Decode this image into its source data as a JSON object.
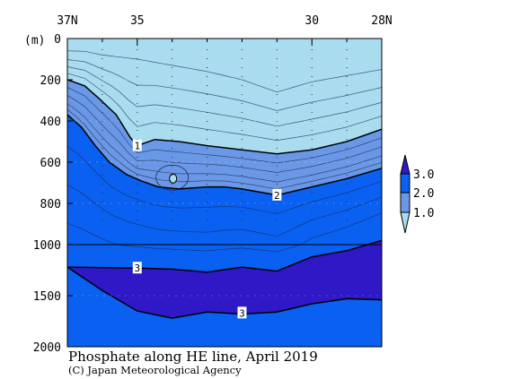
{
  "title": "Phosphate along HE line, April 2019",
  "credit": "(C) Japan Meteorological Agency",
  "depth_unit": "(m)",
  "chart_data": {
    "type": "contour",
    "x_axis": {
      "range": [
        37,
        28
      ],
      "ticks": [
        {
          "lat": 37,
          "label": "37N"
        },
        {
          "lat": 35,
          "label": "35"
        },
        {
          "lat": 30,
          "label": "30"
        },
        {
          "lat": 28,
          "label": "28N"
        }
      ],
      "minor_ticks": [
        36,
        34,
        33,
        32,
        31,
        29
      ]
    },
    "y_axis": {
      "range": [
        0,
        2000
      ],
      "break_at": 1000,
      "ticks": [
        {
          "depth": 0,
          "label": "0"
        },
        {
          "depth": 200,
          "label": "200"
        },
        {
          "depth": 400,
          "label": "400"
        },
        {
          "depth": 600,
          "label": "600"
        },
        {
          "depth": 800,
          "label": "800"
        },
        {
          "depth": 1000,
          "label": "1000"
        },
        {
          "depth": 1500,
          "label": "1500"
        },
        {
          "depth": 2000,
          "label": "2000"
        }
      ]
    },
    "stations": [
      36,
      35,
      34,
      33,
      32,
      31,
      30,
      29
    ],
    "colors": {
      "below_1": "#a9dcee",
      "1_to_2": "#6a98e6",
      "2_to_3": "#0a60f0",
      "above_3": "#2f18c6"
    },
    "legend": {
      "placement": "right",
      "levels": [
        {
          "value": 1.0,
          "label": "1.0"
        },
        {
          "value": 2.0,
          "label": "2.0"
        },
        {
          "value": 3.0,
          "label": "3.0"
        }
      ]
    },
    "contours": [
      {
        "level": 1.0,
        "label": "1",
        "label_lat": 35.0,
        "label_depth": 520,
        "points": [
          [
            37,
            200
          ],
          [
            36.5,
            230
          ],
          [
            36.1,
            290
          ],
          [
            35.6,
            370
          ],
          [
            35.2,
            480
          ],
          [
            35.0,
            520
          ],
          [
            34.5,
            490
          ],
          [
            33.8,
            500
          ],
          [
            33.0,
            520
          ],
          [
            32.0,
            540
          ],
          [
            31.0,
            560
          ],
          [
            30.0,
            540
          ],
          [
            29.0,
            500
          ],
          [
            28.0,
            440
          ]
        ]
      },
      {
        "level": 2.0,
        "label": "2",
        "label_lat": 31.0,
        "label_depth": 760,
        "points": [
          [
            37,
            370
          ],
          [
            36.6,
            430
          ],
          [
            36.2,
            520
          ],
          [
            35.8,
            600
          ],
          [
            35.3,
            660
          ],
          [
            34.9,
            690
          ],
          [
            34.4,
            720
          ],
          [
            33.8,
            730
          ],
          [
            33.0,
            720
          ],
          [
            32.5,
            720
          ],
          [
            32.0,
            730
          ],
          [
            31.0,
            760
          ],
          [
            30.0,
            720
          ],
          [
            29.0,
            680
          ],
          [
            28.0,
            630
          ]
        ]
      },
      {
        "level": 3.0,
        "label": "3",
        "label_lat": 35.0,
        "label_depth": 1230,
        "points": [
          [
            37,
            1220
          ],
          [
            35.0,
            1230
          ],
          [
            34.0,
            1240
          ],
          [
            33.0,
            1270
          ],
          [
            32.0,
            1220
          ],
          [
            31.0,
            1260
          ],
          [
            30.0,
            1120
          ],
          [
            29.0,
            1060
          ],
          [
            28.0,
            980
          ]
        ]
      },
      {
        "level": 3.0,
        "label": "3",
        "label_lat": 32.0,
        "label_depth": 1670,
        "points": [
          [
            37,
            1220
          ],
          [
            36.0,
            1450
          ],
          [
            35.0,
            1650
          ],
          [
            34.0,
            1720
          ],
          [
            33.0,
            1660
          ],
          [
            32.0,
            1680
          ],
          [
            31.0,
            1660
          ],
          [
            30.0,
            1580
          ],
          [
            29.0,
            1530
          ],
          [
            28.0,
            1540
          ]
        ]
      }
    ],
    "isolated_contours": [
      {
        "label": "2",
        "center_lat": 34.0,
        "center_depth": 675
      }
    ]
  }
}
